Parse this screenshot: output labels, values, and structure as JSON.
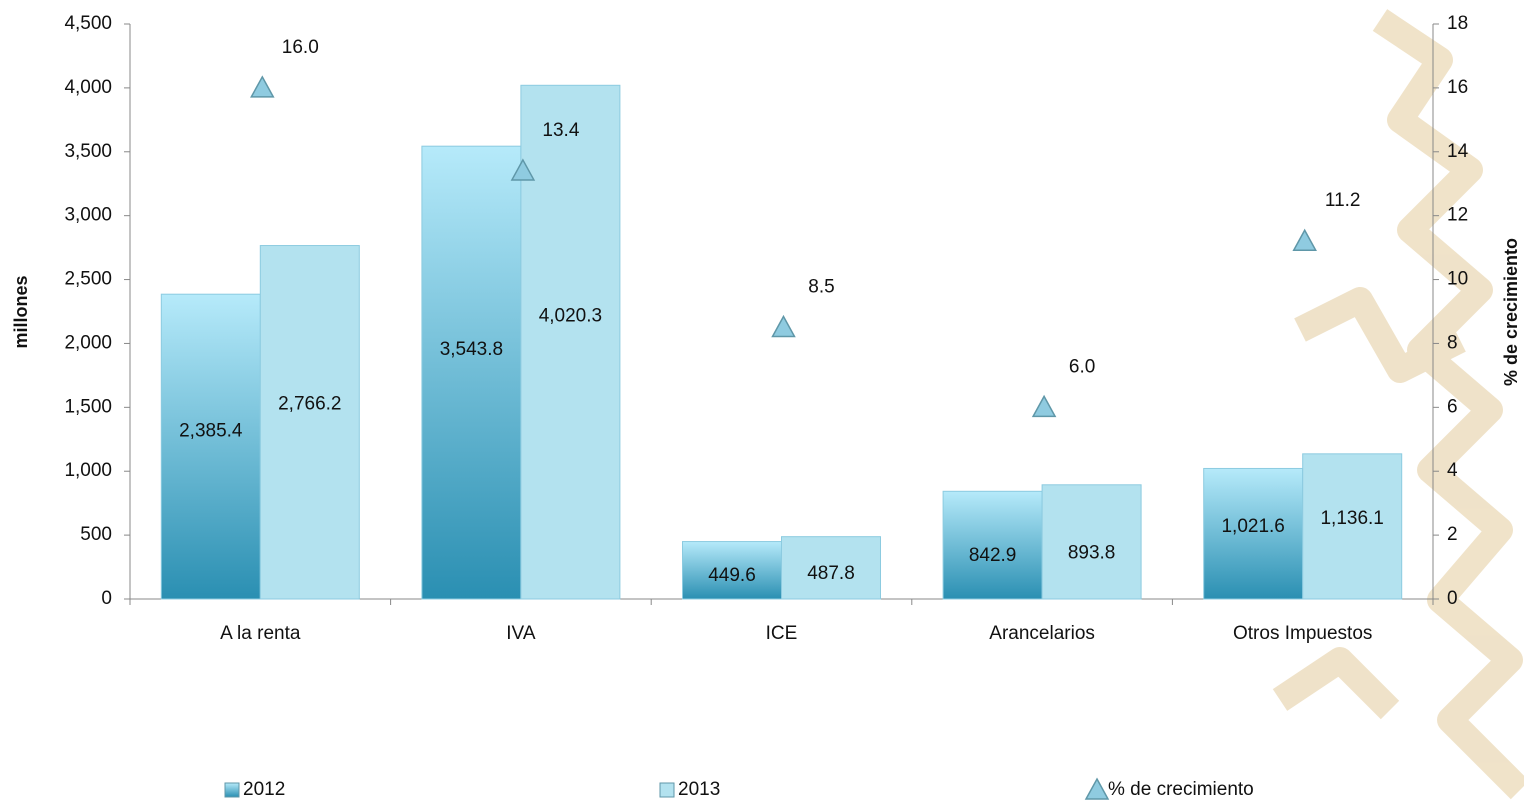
{
  "chart_data": {
    "type": "bar",
    "categories": [
      "A la renta",
      "IVA",
      "ICE",
      "Arancelarios",
      "Otros Impuestos"
    ],
    "series": [
      {
        "name": "2012",
        "color": "#3096b8",
        "values": [
          2385.4,
          3543.8,
          449.6,
          842.9,
          1021.6
        ],
        "value_labels": [
          "2,385.4",
          "3,543.8",
          "449.6",
          "842.9",
          "1,021.6"
        ]
      },
      {
        "name": "2013",
        "color": "#b3e2ef",
        "values": [
          2766.2,
          4020.3,
          487.8,
          893.8,
          1136.1
        ],
        "value_labels": [
          "2,766.2",
          "4,020.3",
          "487.8",
          "893.8",
          "1,136.1"
        ]
      },
      {
        "name": "% de crecimiento",
        "type": "scatter",
        "axis": "y2",
        "color": "#8fcbe0",
        "values": [
          16.0,
          13.4,
          8.5,
          6.0,
          11.2
        ],
        "value_labels": [
          "16.0",
          "13.4",
          "8.5",
          "6.0",
          "11.2"
        ]
      }
    ],
    "ylabel": "millones",
    "y2label": "% de crecimiento",
    "ylim": [
      0,
      4500
    ],
    "yticks": [
      0,
      500,
      {
        "value": 1000,
        "label": "1,000"
      },
      {
        "value": 1500,
        "label": "1,500"
      },
      {
        "value": 2000,
        "label": "2,000"
      },
      {
        "value": 2500,
        "label": "2,500"
      },
      {
        "value": 3000,
        "label": "3,000"
      },
      {
        "value": 3500,
        "label": "3,500"
      },
      {
        "value": 4000,
        "label": "4,000"
      },
      {
        "value": 4500,
        "label": "4,500"
      }
    ],
    "y2lim": [
      0,
      18
    ],
    "y2ticks": [
      0,
      2,
      4,
      6,
      8,
      10,
      12,
      14,
      16,
      18
    ],
    "legend": "bottom"
  }
}
